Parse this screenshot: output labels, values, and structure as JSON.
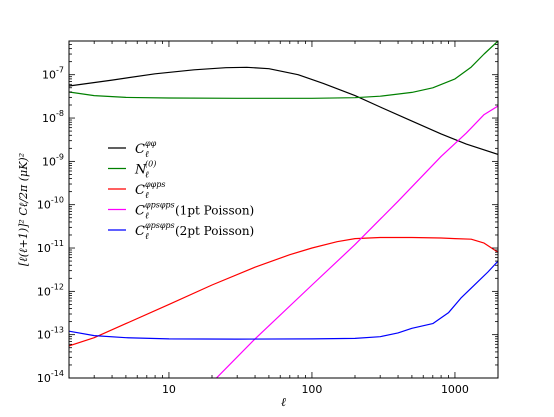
{
  "chart_data": {
    "type": "line",
    "title": "",
    "xlabel": "ℓ",
    "ylabel": "[ℓ(ℓ+1)]² Cℓ/2π (μK)²",
    "xscale": "log",
    "yscale": "log",
    "xlim": [
      2,
      2000
    ],
    "ylim": [
      1e-14,
      6e-07
    ],
    "xticks": [
      {
        "value": 10,
        "label": "10"
      },
      {
        "value": 100,
        "label": "100"
      },
      {
        "value": 1000,
        "label": "1000"
      }
    ],
    "yticks": [
      {
        "exp": -14,
        "base": "10",
        "power": "-14"
      },
      {
        "exp": -13,
        "base": "10",
        "power": "-13"
      },
      {
        "exp": -12,
        "base": "10",
        "power": "-12"
      },
      {
        "exp": -11,
        "base": "10",
        "power": "-11"
      },
      {
        "exp": -10,
        "base": "10",
        "power": "-10"
      },
      {
        "exp": -9,
        "base": "10",
        "power": "-9"
      },
      {
        "exp": -8,
        "base": "10",
        "power": "-8"
      },
      {
        "exp": -7,
        "base": "10",
        "power": "-7"
      }
    ],
    "grid": false,
    "legend_position": "left-center",
    "series": [
      {
        "key": "clpp",
        "color": "#000000",
        "legend_main": "C",
        "legend_sup": "φφ",
        "legend_sub": "ℓ",
        "legend_suffix": "",
        "points": [
          [
            2,
            5.5e-08
          ],
          [
            4,
            7.5e-08
          ],
          [
            8,
            1.05e-07
          ],
          [
            15,
            1.3e-07
          ],
          [
            25,
            1.45e-07
          ],
          [
            35,
            1.48e-07
          ],
          [
            50,
            1.38e-07
          ],
          [
            80,
            1e-07
          ],
          [
            120,
            6.3e-08
          ],
          [
            200,
            3.3e-08
          ],
          [
            300,
            1.8e-08
          ],
          [
            500,
            8.5e-09
          ],
          [
            800,
            4.3e-09
          ],
          [
            1200,
            2.5e-09
          ],
          [
            2000,
            1.45e-09
          ]
        ]
      },
      {
        "key": "n0",
        "color": "#008000",
        "legend_main": "N",
        "legend_sup": "(0)",
        "legend_sub": "ℓ",
        "legend_suffix": "",
        "points": [
          [
            2,
            4e-08
          ],
          [
            3,
            3.3e-08
          ],
          [
            5,
            3e-08
          ],
          [
            10,
            2.9e-08
          ],
          [
            30,
            2.85e-08
          ],
          [
            100,
            2.85e-08
          ],
          [
            200,
            2.95e-08
          ],
          [
            300,
            3.2e-08
          ],
          [
            500,
            3.9e-08
          ],
          [
            700,
            5e-08
          ],
          [
            1000,
            8e-08
          ],
          [
            1300,
            1.5e-07
          ],
          [
            1600,
            3e-07
          ],
          [
            2000,
            6e-07
          ]
        ]
      },
      {
        "key": "clpps",
        "color": "#ff0000",
        "legend_main": "C",
        "legend_sup": "φφps",
        "legend_sub": "ℓ",
        "legend_suffix": "",
        "points": [
          [
            2,
            5.5e-14
          ],
          [
            3,
            8.5e-14
          ],
          [
            5,
            1.8e-13
          ],
          [
            10,
            5e-13
          ],
          [
            20,
            1.4e-12
          ],
          [
            40,
            3.6e-12
          ],
          [
            70,
            7e-12
          ],
          [
            100,
            1e-11
          ],
          [
            150,
            1.4e-11
          ],
          [
            200,
            1.65e-11
          ],
          [
            300,
            1.75e-11
          ],
          [
            500,
            1.75e-11
          ],
          [
            800,
            1.7e-11
          ],
          [
            1000,
            1.65e-11
          ],
          [
            1300,
            1.6e-11
          ],
          [
            1600,
            1.3e-11
          ],
          [
            2000,
            8e-12
          ]
        ]
      },
      {
        "key": "clpsps1",
        "color": "#ff00ff",
        "legend_main": "C",
        "legend_sup": "φpsφps",
        "legend_sub": "ℓ",
        "legend_suffix": "(1pt Poisson)",
        "points": [
          [
            15,
            3e-15
          ],
          [
            40,
            8e-14
          ],
          [
            100,
            1.4e-12
          ],
          [
            200,
            1.2e-11
          ],
          [
            400,
            1.2e-10
          ],
          [
            800,
            1.3e-09
          ],
          [
            1200,
            4.5e-09
          ],
          [
            1600,
            1.2e-08
          ],
          [
            2000,
            1.9e-08
          ]
        ]
      },
      {
        "key": "clpsps2",
        "color": "#0000ff",
        "legend_main": "C",
        "legend_sup": "φpsφps",
        "legend_sub": "ℓ",
        "legend_suffix": "(2pt Poisson)",
        "points": [
          [
            2,
            1.2e-13
          ],
          [
            3,
            9.5e-14
          ],
          [
            5,
            8.5e-14
          ],
          [
            10,
            8e-14
          ],
          [
            30,
            7.9e-14
          ],
          [
            100,
            8e-14
          ],
          [
            200,
            8.2e-14
          ],
          [
            300,
            9e-14
          ],
          [
            400,
            1.1e-13
          ],
          [
            500,
            1.4e-13
          ],
          [
            700,
            1.8e-13
          ],
          [
            900,
            3.2e-13
          ],
          [
            1100,
            7e-13
          ],
          [
            1400,
            1.5e-12
          ],
          [
            1700,
            2.8e-12
          ],
          [
            2000,
            5e-12
          ]
        ]
      }
    ]
  }
}
